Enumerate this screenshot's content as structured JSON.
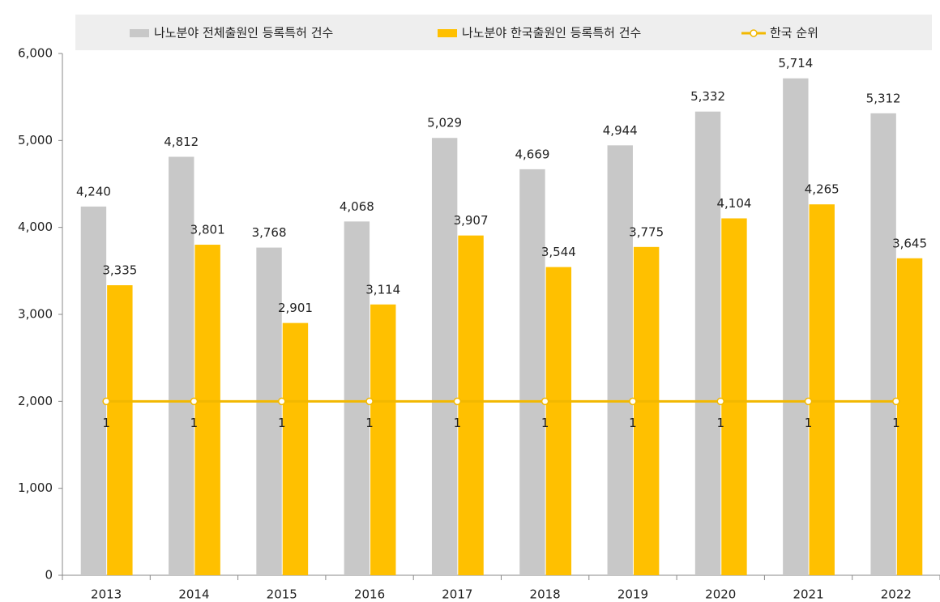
{
  "chart_data": {
    "type": "bar",
    "categories": [
      "2013",
      "2014",
      "2015",
      "2016",
      "2017",
      "2018",
      "2019",
      "2020",
      "2021",
      "2022"
    ],
    "series": [
      {
        "name": "나노분야 전체출원인 등록특허 건수",
        "type": "bar",
        "color": "#c8c8c8",
        "values": [
          4240,
          4812,
          3768,
          4068,
          5029,
          4669,
          4944,
          5332,
          5714,
          5312
        ],
        "value_labels": [
          "4,240",
          "4,812",
          "3,768",
          "4,068",
          "5,029",
          "4,669",
          "4,944",
          "5,332",
          "5,714",
          "5,312"
        ]
      },
      {
        "name": "나노분야 한국출원인 등록특허 건수",
        "type": "bar",
        "color": "#ffc000",
        "values": [
          3335,
          3801,
          2901,
          3114,
          3907,
          3544,
          3775,
          4104,
          4265,
          3645
        ],
        "value_labels": [
          "3,335",
          "3,801",
          "2,901",
          "3,114",
          "3,907",
          "3,544",
          "3,775",
          "4,104",
          "4,265",
          "3,645"
        ]
      },
      {
        "name": "한국 순위",
        "type": "line",
        "axis": "y2",
        "color": "#f2b800",
        "values": [
          1,
          1,
          1,
          1,
          1,
          1,
          1,
          1,
          1,
          1
        ]
      }
    ],
    "ylim": [
      0,
      6000
    ],
    "yticks": [
      {
        "value": 0,
        "label": "0"
      },
      {
        "value": 1000,
        "label": "1,000"
      },
      {
        "value": 2000,
        "label": "2,000"
      },
      {
        "value": 3000,
        "label": "3,000"
      },
      {
        "value": 4000,
        "label": "4,000"
      },
      {
        "value": 5000,
        "label": "5,000"
      },
      {
        "value": 6000,
        "label": "6,000"
      }
    ],
    "y2lim": [
      0,
      3
    ],
    "legend": "top"
  }
}
